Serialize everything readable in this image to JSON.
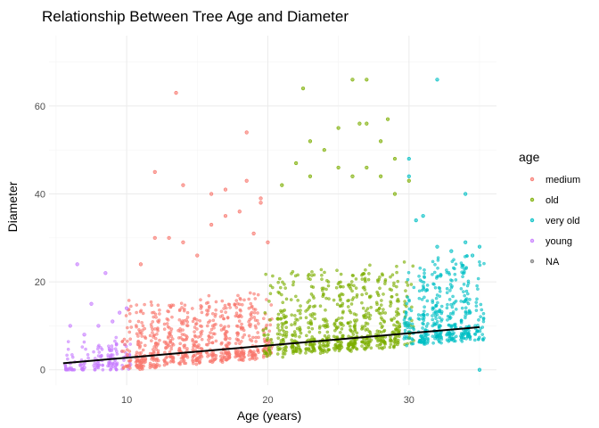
{
  "chart_data": {
    "type": "scatter",
    "title": "Relationship Between Tree Age and Diameter",
    "xlabel": "Age (years)",
    "ylabel": "Diameter",
    "xlim": [
      4.5,
      36.2
    ],
    "ylim": [
      -3.5,
      76
    ],
    "x_ticks": [
      10,
      20,
      30
    ],
    "y_ticks": [
      0,
      20,
      40,
      60
    ],
    "grid": true,
    "legend": {
      "title": "age",
      "placement": "right",
      "entries": [
        {
          "label": "medium",
          "color": "#F8766D"
        },
        {
          "label": "old",
          "color": "#7CAE00"
        },
        {
          "label": "very old",
          "color": "#00BFC4"
        },
        {
          "label": "young",
          "color": "#C77CFF"
        },
        {
          "label": "NA",
          "color": "#7F7F7F"
        }
      ]
    },
    "series": [
      {
        "name": "young",
        "color": "#C77CFF",
        "x_range": [
          5.5,
          10
        ],
        "points": [
          [
            6,
            10
          ],
          [
            6.5,
            24
          ],
          [
            7,
            8
          ],
          [
            7.5,
            15
          ],
          [
            8,
            10
          ],
          [
            8.5,
            22
          ],
          [
            9,
            11
          ],
          [
            9.5,
            13
          ],
          [
            10,
            14
          ],
          [
            6,
            1.5
          ],
          [
            7,
            0.5
          ],
          [
            8,
            1
          ]
        ]
      },
      {
        "name": "medium",
        "color": "#F8766D",
        "x_range": [
          10,
          20
        ],
        "points": [
          [
            12,
            45
          ],
          [
            13.5,
            63
          ],
          [
            14,
            42
          ],
          [
            16,
            40
          ],
          [
            17,
            41
          ],
          [
            18.5,
            43
          ],
          [
            18.5,
            54
          ],
          [
            19,
            31
          ],
          [
            19.5,
            38
          ],
          [
            11,
            24
          ],
          [
            12,
            30
          ],
          [
            13,
            30
          ],
          [
            14,
            29
          ],
          [
            15,
            26
          ],
          [
            16,
            33
          ],
          [
            17,
            35
          ],
          [
            18,
            36
          ],
          [
            19.5,
            39
          ],
          [
            20,
            29
          ]
        ]
      },
      {
        "name": "old",
        "color": "#7CAE00",
        "x_range": [
          20,
          30
        ],
        "points": [
          [
            22.5,
            64
          ],
          [
            23,
            52
          ],
          [
            25,
            55
          ],
          [
            26,
            66
          ],
          [
            26.5,
            56
          ],
          [
            27,
            66
          ],
          [
            27,
            56
          ],
          [
            28,
            52
          ],
          [
            28.5,
            57
          ],
          [
            29,
            48
          ],
          [
            21,
            42
          ],
          [
            22,
            47
          ],
          [
            23,
            44
          ],
          [
            24,
            50
          ],
          [
            25,
            46
          ],
          [
            26,
            44
          ],
          [
            27,
            46
          ],
          [
            28,
            44
          ],
          [
            29,
            40
          ],
          [
            30,
            43
          ]
        ]
      },
      {
        "name": "very old",
        "color": "#00BFC4",
        "x_range": [
          30,
          35
        ],
        "points": [
          [
            30,
            48
          ],
          [
            30,
            44
          ],
          [
            32,
            66
          ],
          [
            34,
            40
          ],
          [
            30.5,
            34
          ],
          [
            31,
            35
          ],
          [
            32,
            28
          ],
          [
            33,
            27
          ],
          [
            34,
            29
          ],
          [
            35,
            28
          ],
          [
            35,
            0
          ],
          [
            34.5,
            26
          ]
        ]
      }
    ],
    "trend_line": {
      "from": [
        5.5,
        1.5
      ],
      "to": [
        35,
        9.7
      ],
      "color": "#000000"
    }
  }
}
